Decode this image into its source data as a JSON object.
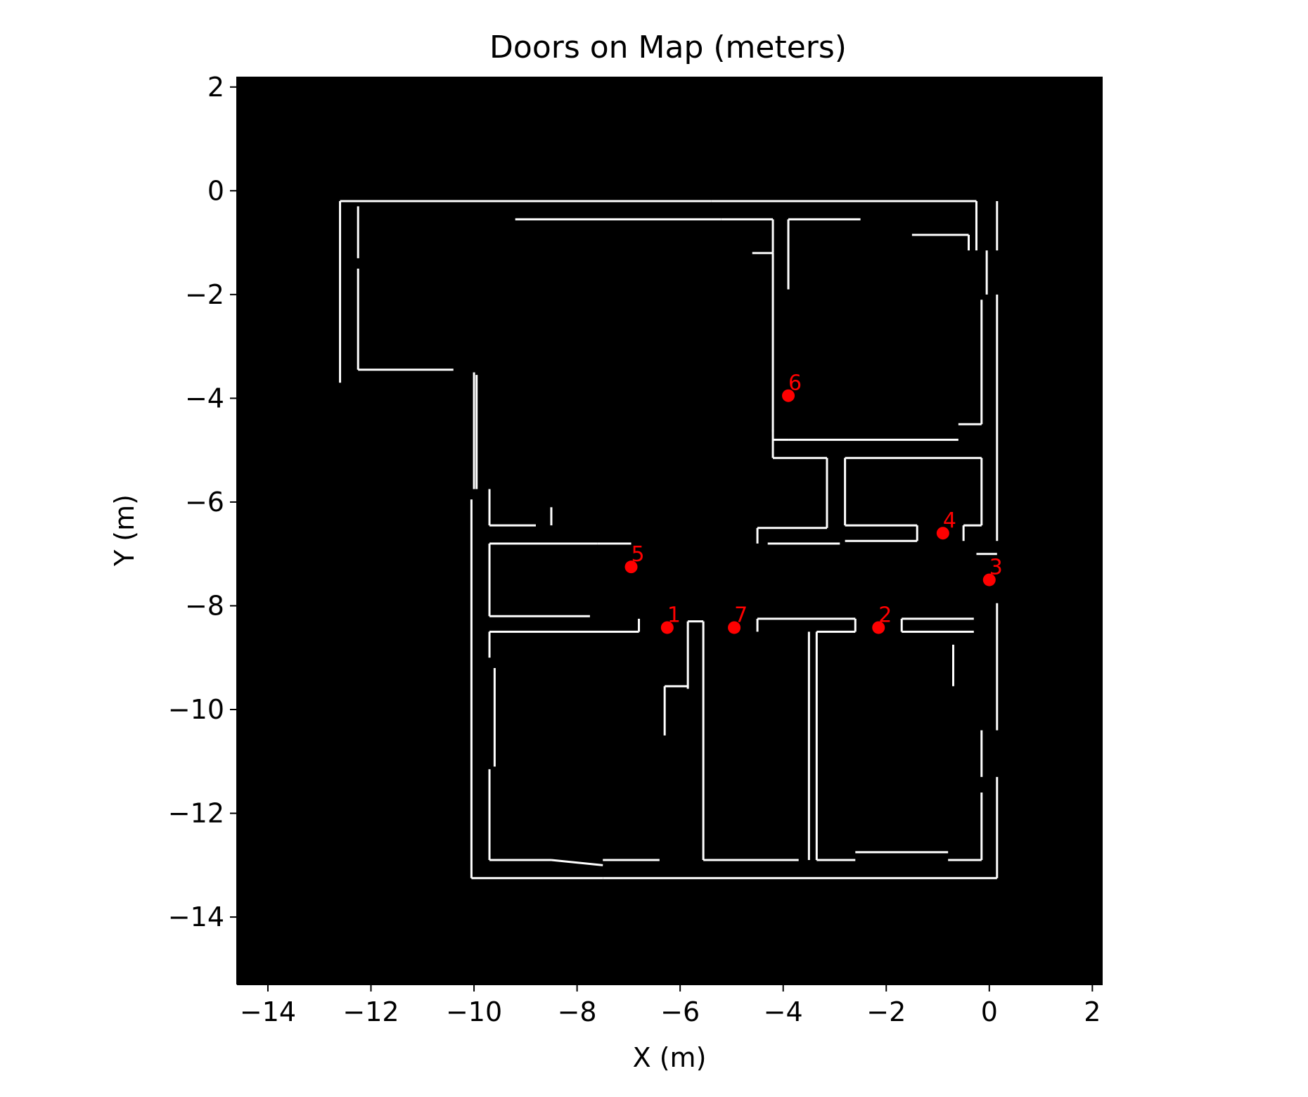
{
  "chart_data": {
    "type": "scatter",
    "title": "Doors on Map (meters)",
    "xlabel": "X (m)",
    "ylabel": "Y (m)",
    "xlim": [
      -14.6,
      2.2
    ],
    "ylim": [
      -15.3,
      2.2
    ],
    "xticks": [
      -14,
      -12,
      -10,
      -8,
      -6,
      -4,
      -2,
      0,
      2
    ],
    "yticks": [
      2,
      0,
      -2,
      -4,
      -6,
      -8,
      -10,
      -12,
      -14
    ],
    "xtick_labels": [
      "−14",
      "−12",
      "−10",
      "−8",
      "−6",
      "−4",
      "−2",
      "0",
      "2"
    ],
    "ytick_labels": [
      "2",
      "0",
      "−2",
      "−4",
      "−6",
      "−8",
      "−10",
      "−12",
      "−14"
    ],
    "background_color": "#000000",
    "wall_color": "#ffffff",
    "marker_color": "#ff0000",
    "doors": [
      {
        "label": "1",
        "x": -6.25,
        "y": -8.42
      },
      {
        "label": "2",
        "x": -2.15,
        "y": -8.42
      },
      {
        "label": "3",
        "x": 0.0,
        "y": -7.5
      },
      {
        "label": "4",
        "x": -0.9,
        "y": -6.6
      },
      {
        "label": "5",
        "x": -6.95,
        "y": -7.25
      },
      {
        "label": "6",
        "x": -3.9,
        "y": -3.95
      },
      {
        "label": "7",
        "x": -4.95,
        "y": -8.42
      }
    ],
    "walls": [
      [
        [
          -12.6,
          -0.2
        ],
        [
          -12.6,
          -3.7
        ]
      ],
      [
        [
          -12.6,
          -0.2
        ],
        [
          -5.4,
          -0.2
        ]
      ],
      [
        [
          -5.4,
          -0.2
        ],
        [
          -0.25,
          -0.2
        ]
      ],
      [
        [
          0.15,
          -0.2
        ],
        [
          0.15,
          -1.15
        ]
      ],
      [
        [
          -12.25,
          -0.3
        ],
        [
          -12.25,
          -1.3
        ]
      ],
      [
        [
          -12.25,
          -1.5
        ],
        [
          -12.25,
          -3.45
        ]
      ],
      [
        [
          -12.25,
          -3.45
        ],
        [
          -10.4,
          -3.45
        ]
      ],
      [
        [
          -10.0,
          -3.5
        ],
        [
          -10.0,
          -5.75
        ]
      ],
      [
        [
          -9.95,
          -3.55
        ],
        [
          -9.95,
          -5.75
        ]
      ],
      [
        [
          -9.2,
          -0.55
        ],
        [
          -5.2,
          -0.55
        ]
      ],
      [
        [
          -5.2,
          -0.55
        ],
        [
          -4.2,
          -0.55
        ]
      ],
      [
        [
          -4.2,
          -0.55
        ],
        [
          -4.2,
          -1.2
        ]
      ],
      [
        [
          -4.6,
          -1.2
        ],
        [
          -4.2,
          -1.2
        ]
      ],
      [
        [
          -4.2,
          -1.2
        ],
        [
          -4.2,
          -4.65
        ]
      ],
      [
        [
          -3.9,
          -0.55
        ],
        [
          -3.9,
          -1.9
        ]
      ],
      [
        [
          -3.9,
          -0.55
        ],
        [
          -2.5,
          -0.55
        ]
      ],
      [
        [
          -1.5,
          -0.85
        ],
        [
          -0.4,
          -0.85
        ]
      ],
      [
        [
          -0.4,
          -0.85
        ],
        [
          -0.4,
          -1.15
        ]
      ],
      [
        [
          -0.25,
          -0.2
        ],
        [
          -0.25,
          -1.15
        ]
      ],
      [
        [
          -0.05,
          -1.15
        ],
        [
          -0.05,
          -2.0
        ]
      ],
      [
        [
          0.15,
          -2.0
        ],
        [
          0.15,
          -6.75
        ]
      ],
      [
        [
          -0.15,
          -2.1
        ],
        [
          -0.15,
          -4.5
        ]
      ],
      [
        [
          -0.15,
          -4.5
        ],
        [
          -0.6,
          -4.5
        ]
      ],
      [
        [
          -4.2,
          -4.8
        ],
        [
          -3.9,
          -4.8
        ]
      ],
      [
        [
          -3.9,
          -4.8
        ],
        [
          -0.6,
          -4.8
        ]
      ],
      [
        [
          -4.2,
          -4.6
        ],
        [
          -4.2,
          -5.15
        ]
      ],
      [
        [
          -4.2,
          -5.15
        ],
        [
          -3.15,
          -5.15
        ]
      ],
      [
        [
          -3.15,
          -5.15
        ],
        [
          -3.15,
          -6.5
        ]
      ],
      [
        [
          -4.5,
          -6.5
        ],
        [
          -3.15,
          -6.5
        ]
      ],
      [
        [
          -4.5,
          -6.5
        ],
        [
          -4.5,
          -6.8
        ]
      ],
      [
        [
          -4.3,
          -6.8
        ],
        [
          -2.9,
          -6.8
        ]
      ],
      [
        [
          -2.8,
          -5.15
        ],
        [
          -0.15,
          -5.15
        ]
      ],
      [
        [
          -2.8,
          -5.15
        ],
        [
          -2.8,
          -6.45
        ]
      ],
      [
        [
          -2.8,
          -6.45
        ],
        [
          -1.4,
          -6.45
        ]
      ],
      [
        [
          -1.4,
          -6.45
        ],
        [
          -1.4,
          -6.75
        ]
      ],
      [
        [
          -2.8,
          -6.75
        ],
        [
          -1.4,
          -6.75
        ]
      ],
      [
        [
          -0.5,
          -6.45
        ],
        [
          -0.15,
          -6.45
        ]
      ],
      [
        [
          -0.15,
          -5.15
        ],
        [
          -0.15,
          -6.45
        ]
      ],
      [
        [
          -0.5,
          -6.45
        ],
        [
          -0.5,
          -6.75
        ]
      ],
      [
        [
          -0.25,
          -7.0
        ],
        [
          0.15,
          -7.0
        ]
      ],
      [
        [
          -9.7,
          -5.75
        ],
        [
          -9.7,
          -6.45
        ]
      ],
      [
        [
          -9.7,
          -6.45
        ],
        [
          -8.8,
          -6.45
        ]
      ],
      [
        [
          -8.5,
          -6.1
        ],
        [
          -8.5,
          -6.45
        ]
      ],
      [
        [
          -9.7,
          -6.8
        ],
        [
          -7.6,
          -6.8
        ]
      ],
      [
        [
          -7.6,
          -6.8
        ],
        [
          -6.95,
          -6.8
        ]
      ],
      [
        [
          -9.7,
          -6.8
        ],
        [
          -9.7,
          -8.2
        ]
      ],
      [
        [
          -9.7,
          -8.2
        ],
        [
          -7.75,
          -8.2
        ]
      ],
      [
        [
          -10.05,
          -5.95
        ],
        [
          -10.05,
          -13.25
        ]
      ],
      [
        [
          -9.7,
          -8.5
        ],
        [
          -6.8,
          -8.5
        ]
      ],
      [
        [
          -6.8,
          -8.25
        ],
        [
          -6.8,
          -8.5
        ]
      ],
      [
        [
          -9.7,
          -8.5
        ],
        [
          -9.7,
          -9.0
        ]
      ],
      [
        [
          -9.6,
          -9.2
        ],
        [
          -9.6,
          -11.1
        ]
      ],
      [
        [
          -9.7,
          -11.15
        ],
        [
          -9.7,
          -12.9
        ]
      ],
      [
        [
          -9.7,
          -12.9
        ],
        [
          -8.5,
          -12.9
        ]
      ],
      [
        [
          -8.5,
          -12.9
        ],
        [
          -7.5,
          -13.0
        ]
      ],
      [
        [
          -7.5,
          -12.9
        ],
        [
          -6.4,
          -12.9
        ]
      ],
      [
        [
          -10.05,
          -13.25
        ],
        [
          -7.5,
          -13.25
        ]
      ],
      [
        [
          -7.5,
          -13.25
        ],
        [
          0.15,
          -13.25
        ]
      ],
      [
        [
          -5.85,
          -8.3
        ],
        [
          -5.55,
          -8.3
        ]
      ],
      [
        [
          -5.85,
          -8.3
        ],
        [
          -5.85,
          -9.6
        ]
      ],
      [
        [
          -5.55,
          -8.3
        ],
        [
          -5.55,
          -12.9
        ]
      ],
      [
        [
          -5.55,
          -12.9
        ],
        [
          -3.7,
          -12.9
        ]
      ],
      [
        [
          -4.5,
          -8.25
        ],
        [
          -2.6,
          -8.25
        ]
      ],
      [
        [
          -4.5,
          -8.25
        ],
        [
          -4.5,
          -8.5
        ]
      ],
      [
        [
          -3.5,
          -8.5
        ],
        [
          -3.5,
          -12.9
        ]
      ],
      [
        [
          -3.35,
          -8.5
        ],
        [
          -3.35,
          -12.9
        ]
      ],
      [
        [
          -3.35,
          -8.5
        ],
        [
          -2.6,
          -8.5
        ]
      ],
      [
        [
          -2.6,
          -8.25
        ],
        [
          -2.6,
          -8.5
        ]
      ],
      [
        [
          -1.7,
          -8.5
        ],
        [
          -0.3,
          -8.5
        ]
      ],
      [
        [
          -1.7,
          -8.25
        ],
        [
          -0.3,
          -8.25
        ]
      ],
      [
        [
          -1.7,
          -8.25
        ],
        [
          -1.7,
          -8.5
        ]
      ],
      [
        [
          -3.35,
          -12.9
        ],
        [
          -2.6,
          -12.9
        ]
      ],
      [
        [
          -2.6,
          -12.75
        ],
        [
          -0.8,
          -12.75
        ]
      ],
      [
        [
          -0.8,
          -12.9
        ],
        [
          -0.15,
          -12.9
        ]
      ],
      [
        [
          -0.15,
          -12.9
        ],
        [
          -0.15,
          -11.6
        ]
      ],
      [
        [
          0.15,
          -7.95
        ],
        [
          0.15,
          -10.4
        ]
      ],
      [
        [
          0.15,
          -11.3
        ],
        [
          0.15,
          -13.25
        ]
      ],
      [
        [
          -0.15,
          -10.4
        ],
        [
          -0.15,
          -11.3
        ]
      ],
      [
        [
          -0.7,
          -8.75
        ],
        [
          -0.7,
          -9.55
        ]
      ],
      [
        [
          -6.3,
          -9.55
        ],
        [
          -5.85,
          -9.55
        ]
      ],
      [
        [
          -6.3,
          -9.55
        ],
        [
          -6.3,
          -10.5
        ]
      ]
    ]
  }
}
